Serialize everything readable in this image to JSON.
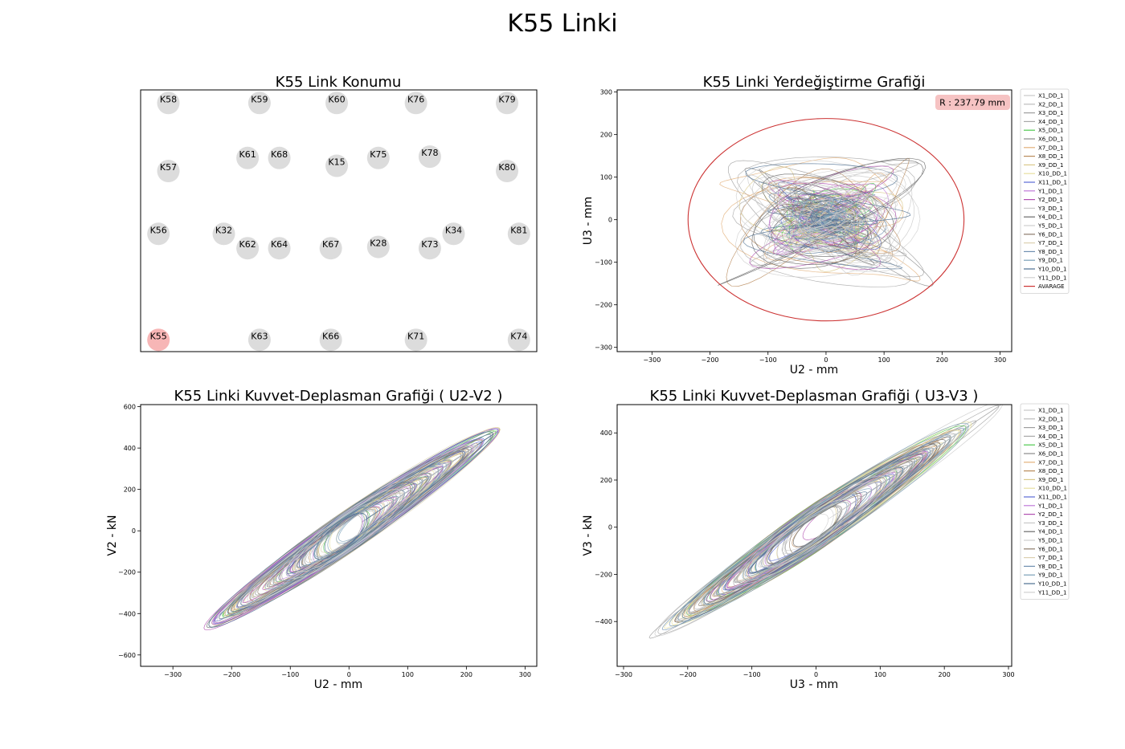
{
  "figure": {
    "title": "K55 Linki"
  },
  "legend_labels": [
    "X1_DD_1",
    "X2_DD_1",
    "X3_DD_1",
    "X4_DD_1",
    "X5_DD_1",
    "X6_DD_1",
    "X7_DD_1",
    "X8_DD_1",
    "X9_DD_1",
    "X10_DD_1",
    "X11_DD_1",
    "Y1_DD_1",
    "Y2_DD_1",
    "Y3_DD_1",
    "Y4_DD_1",
    "Y5_DD_1",
    "Y6_DD_1",
    "Y7_DD_1",
    "Y8_DD_1",
    "Y9_DD_1",
    "Y10_DD_1",
    "Y11_DD_1"
  ],
  "series_colors": [
    "#c8c8c8",
    "#bdbdbd",
    "#9e9e9e",
    "#a8a8a8",
    "#4fc94f",
    "#8a8a8a",
    "#e3b07a",
    "#b88a5a",
    "#d9c98a",
    "#e8e0a0",
    "#5a6bd6",
    "#c07ad9",
    "#b04fb0",
    "#c8c8c8",
    "#6a6a6a",
    "#cfcfcf",
    "#8c7b6b",
    "#dcd0b0",
    "#6f8fb0",
    "#7aa0b8",
    "#4c6f91",
    "#d0d0d0"
  ],
  "chart_data": [
    {
      "id": "link-map",
      "type": "scatter",
      "title": "K55 Link Konumu",
      "xlim": [
        0,
        100
      ],
      "ylim": [
        0,
        100
      ],
      "points": [
        {
          "label": "K58",
          "x": 7,
          "y": 95,
          "highlight": false
        },
        {
          "label": "K59",
          "x": 30,
          "y": 95,
          "highlight": false
        },
        {
          "label": "K60",
          "x": 49.5,
          "y": 95,
          "highlight": false
        },
        {
          "label": "K76",
          "x": 69.5,
          "y": 95,
          "highlight": false
        },
        {
          "label": "K79",
          "x": 92.5,
          "y": 95,
          "highlight": false
        },
        {
          "label": "K61",
          "x": 27,
          "y": 74,
          "highlight": false
        },
        {
          "label": "K68",
          "x": 35,
          "y": 74,
          "highlight": false
        },
        {
          "label": "K15",
          "x": 49.5,
          "y": 71,
          "highlight": false
        },
        {
          "label": "K75",
          "x": 60,
          "y": 74,
          "highlight": false
        },
        {
          "label": "K78",
          "x": 73,
          "y": 74.5,
          "highlight": false
        },
        {
          "label": "K57",
          "x": 7,
          "y": 69,
          "highlight": false
        },
        {
          "label": "K80",
          "x": 92.5,
          "y": 69,
          "highlight": false
        },
        {
          "label": "K56",
          "x": 4.5,
          "y": 45,
          "highlight": false
        },
        {
          "label": "K32",
          "x": 21,
          "y": 45,
          "highlight": false
        },
        {
          "label": "K62",
          "x": 27,
          "y": 39.5,
          "highlight": false
        },
        {
          "label": "K64",
          "x": 35,
          "y": 39.5,
          "highlight": false
        },
        {
          "label": "K67",
          "x": 48,
          "y": 39.5,
          "highlight": false
        },
        {
          "label": "K28",
          "x": 60,
          "y": 40,
          "highlight": false
        },
        {
          "label": "K73",
          "x": 73,
          "y": 39.5,
          "highlight": false
        },
        {
          "label": "K34",
          "x": 79,
          "y": 45,
          "highlight": false
        },
        {
          "label": "K81",
          "x": 95.5,
          "y": 45,
          "highlight": false
        },
        {
          "label": "K55",
          "x": 4.5,
          "y": 4.5,
          "highlight": true
        },
        {
          "label": "K63",
          "x": 30,
          "y": 4.5,
          "highlight": false
        },
        {
          "label": "K66",
          "x": 48,
          "y": 4.5,
          "highlight": false
        },
        {
          "label": "K71",
          "x": 69.5,
          "y": 4.5,
          "highlight": false
        },
        {
          "label": "K74",
          "x": 95.5,
          "y": 4.5,
          "highlight": false
        }
      ]
    },
    {
      "id": "displacement",
      "type": "line",
      "title": "K55 Linki Yerdeğiştirme Grafiği",
      "xlabel": "U2 - mm",
      "ylabel": "U3 - mm",
      "xlim": [
        -360,
        320
      ],
      "ylim": [
        -310,
        305
      ],
      "xticks": [
        -300,
        -200,
        -100,
        0,
        100,
        200,
        300
      ],
      "yticks": [
        -300,
        -200,
        -100,
        0,
        100,
        200,
        300
      ],
      "annotation": "R : 237.79 mm",
      "radius": 237.79,
      "average_label": "AVARAGE",
      "average_color": "#cc3333",
      "legend": "upper right outside"
    },
    {
      "id": "force-u2-v2",
      "type": "line",
      "title": "K55 Linki Kuvvet-Deplasman Grafiği ( U2-V2 )",
      "xlabel": "U2 - mm",
      "ylabel": "V2 - kN",
      "xlim": [
        -355,
        320
      ],
      "ylim": [
        -655,
        610
      ],
      "xticks": [
        -300,
        -200,
        -100,
        0,
        100,
        200,
        300
      ],
      "yticks": [
        -600,
        -400,
        -200,
        0,
        200,
        400,
        600
      ],
      "slope": 1.9,
      "u_max": 290
    },
    {
      "id": "force-u3-v3",
      "type": "line",
      "title": "K55 Linki Kuvvet-Deplasman Grafiği ( U3-V3 )",
      "xlabel": "U3 - mm",
      "ylabel": "V3 - kN",
      "xlim": [
        -310,
        305
      ],
      "ylim": [
        -590,
        520
      ],
      "xticks": [
        -300,
        -200,
        -100,
        0,
        100,
        200,
        300
      ],
      "yticks": [
        -400,
        -200,
        0,
        200,
        400
      ],
      "slope": 1.8,
      "u_max": 280,
      "legend": "upper right outside"
    }
  ]
}
